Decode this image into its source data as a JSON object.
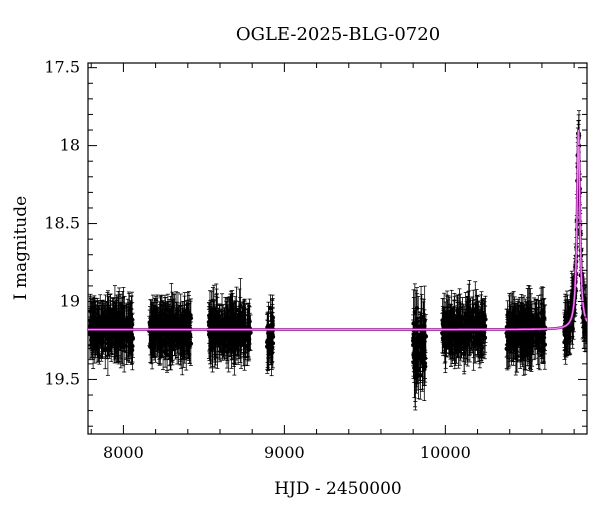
{
  "chart_data": {
    "type": "scatter",
    "title": "OGLE-2025-BLG-0720",
    "xlabel": "HJD - 2450000",
    "ylabel": "I magnitude",
    "xlim": [
      7780,
      10880
    ],
    "ylim": [
      19.85,
      17.47
    ],
    "y_inverted": true,
    "x_ticks": [
      8000,
      9000,
      10000
    ],
    "y_ticks": [
      17.5,
      18,
      18.5,
      19,
      19.5
    ],
    "grid": false,
    "colors": {
      "points": "#000000",
      "model": "#ee82ee",
      "model_shadow": "#800080"
    },
    "baseline_magnitude": 19.18,
    "observing_seasons": [
      {
        "start": 7790,
        "end": 8060,
        "mean": 19.18,
        "scatter": 0.08,
        "error": 0.12
      },
      {
        "start": 8160,
        "end": 8420,
        "mean": 19.18,
        "scatter": 0.08,
        "error": 0.12
      },
      {
        "start": 8530,
        "end": 8790,
        "mean": 19.19,
        "scatter": 0.08,
        "error": 0.12
      },
      {
        "start": 8890,
        "end": 8930,
        "mean": 19.22,
        "scatter": 0.08,
        "error": 0.12
      },
      {
        "start": 9800,
        "end": 9880,
        "mean": 19.28,
        "scatter": 0.14,
        "error": 0.16
      },
      {
        "start": 9980,
        "end": 10250,
        "mean": 19.18,
        "scatter": 0.08,
        "error": 0.12
      },
      {
        "start": 10380,
        "end": 10620,
        "mean": 19.2,
        "scatter": 0.09,
        "error": 0.12
      },
      {
        "start": 10740,
        "end": 10880,
        "mean": 19.18,
        "scatter": 0.08,
        "error": 0.12
      }
    ],
    "peak": {
      "t0": 10827,
      "magnitude": 17.9,
      "tE": 8
    },
    "model_series": {
      "name": "",
      "baseline": 19.18,
      "peak_magnitude": 17.9,
      "t0": 10827,
      "tE": 8
    }
  }
}
